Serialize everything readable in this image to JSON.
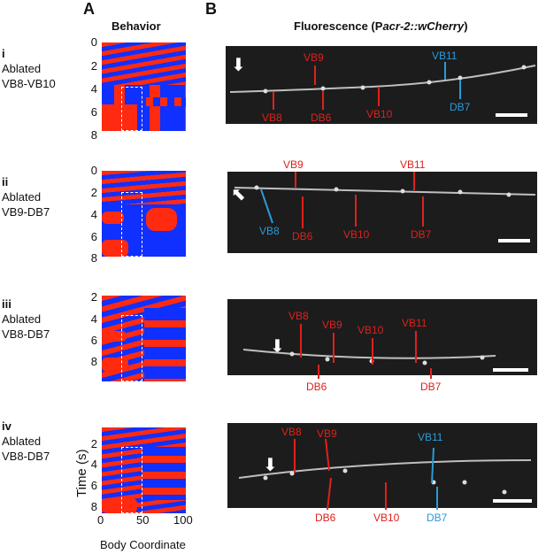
{
  "panels": {
    "a": "A",
    "b": "B"
  },
  "titles": {
    "behavior": "Behavior",
    "fluor_prefix": "Fluorescence (P",
    "fluor_italic": "acr-2::wCherry",
    "fluor_suffix": ")"
  },
  "rows": [
    {
      "roman": "i",
      "word": "Ablated",
      "target": "VB8-VB10"
    },
    {
      "roman": "ii",
      "word": "Ablated",
      "target": "VB9-DB7"
    },
    {
      "roman": "iii",
      "word": "Ablated",
      "target": "VB8-DB7"
    },
    {
      "roman": "iv",
      "word": "Ablated",
      "target": "VB8-DB7"
    }
  ],
  "y_ticks": [
    "0",
    "2",
    "4",
    "6",
    "8"
  ],
  "x_ticks": [
    "0",
    "50",
    "100"
  ],
  "ylabel": "Time (s)",
  "xlabel": "Body Coordinate",
  "neuron_labels": [
    [
      "VB9",
      "VB11",
      "VB8",
      "DB6",
      "VB10",
      "DB7"
    ],
    [
      "VB9",
      "VB11",
      "VB8",
      "DB6",
      "VB10",
      "DB7"
    ],
    [
      "VB8",
      "VB9",
      "VB10",
      "VB11",
      "DB6",
      "DB7"
    ],
    [
      "VB8",
      "VB9",
      "VB11",
      "DB6",
      "VB10",
      "DB7"
    ]
  ],
  "colors": {
    "ablated": "#e0201b",
    "intact": "#2a9ad8",
    "kymo_red": "#ff2a10",
    "kymo_blue": "#1030ff"
  }
}
